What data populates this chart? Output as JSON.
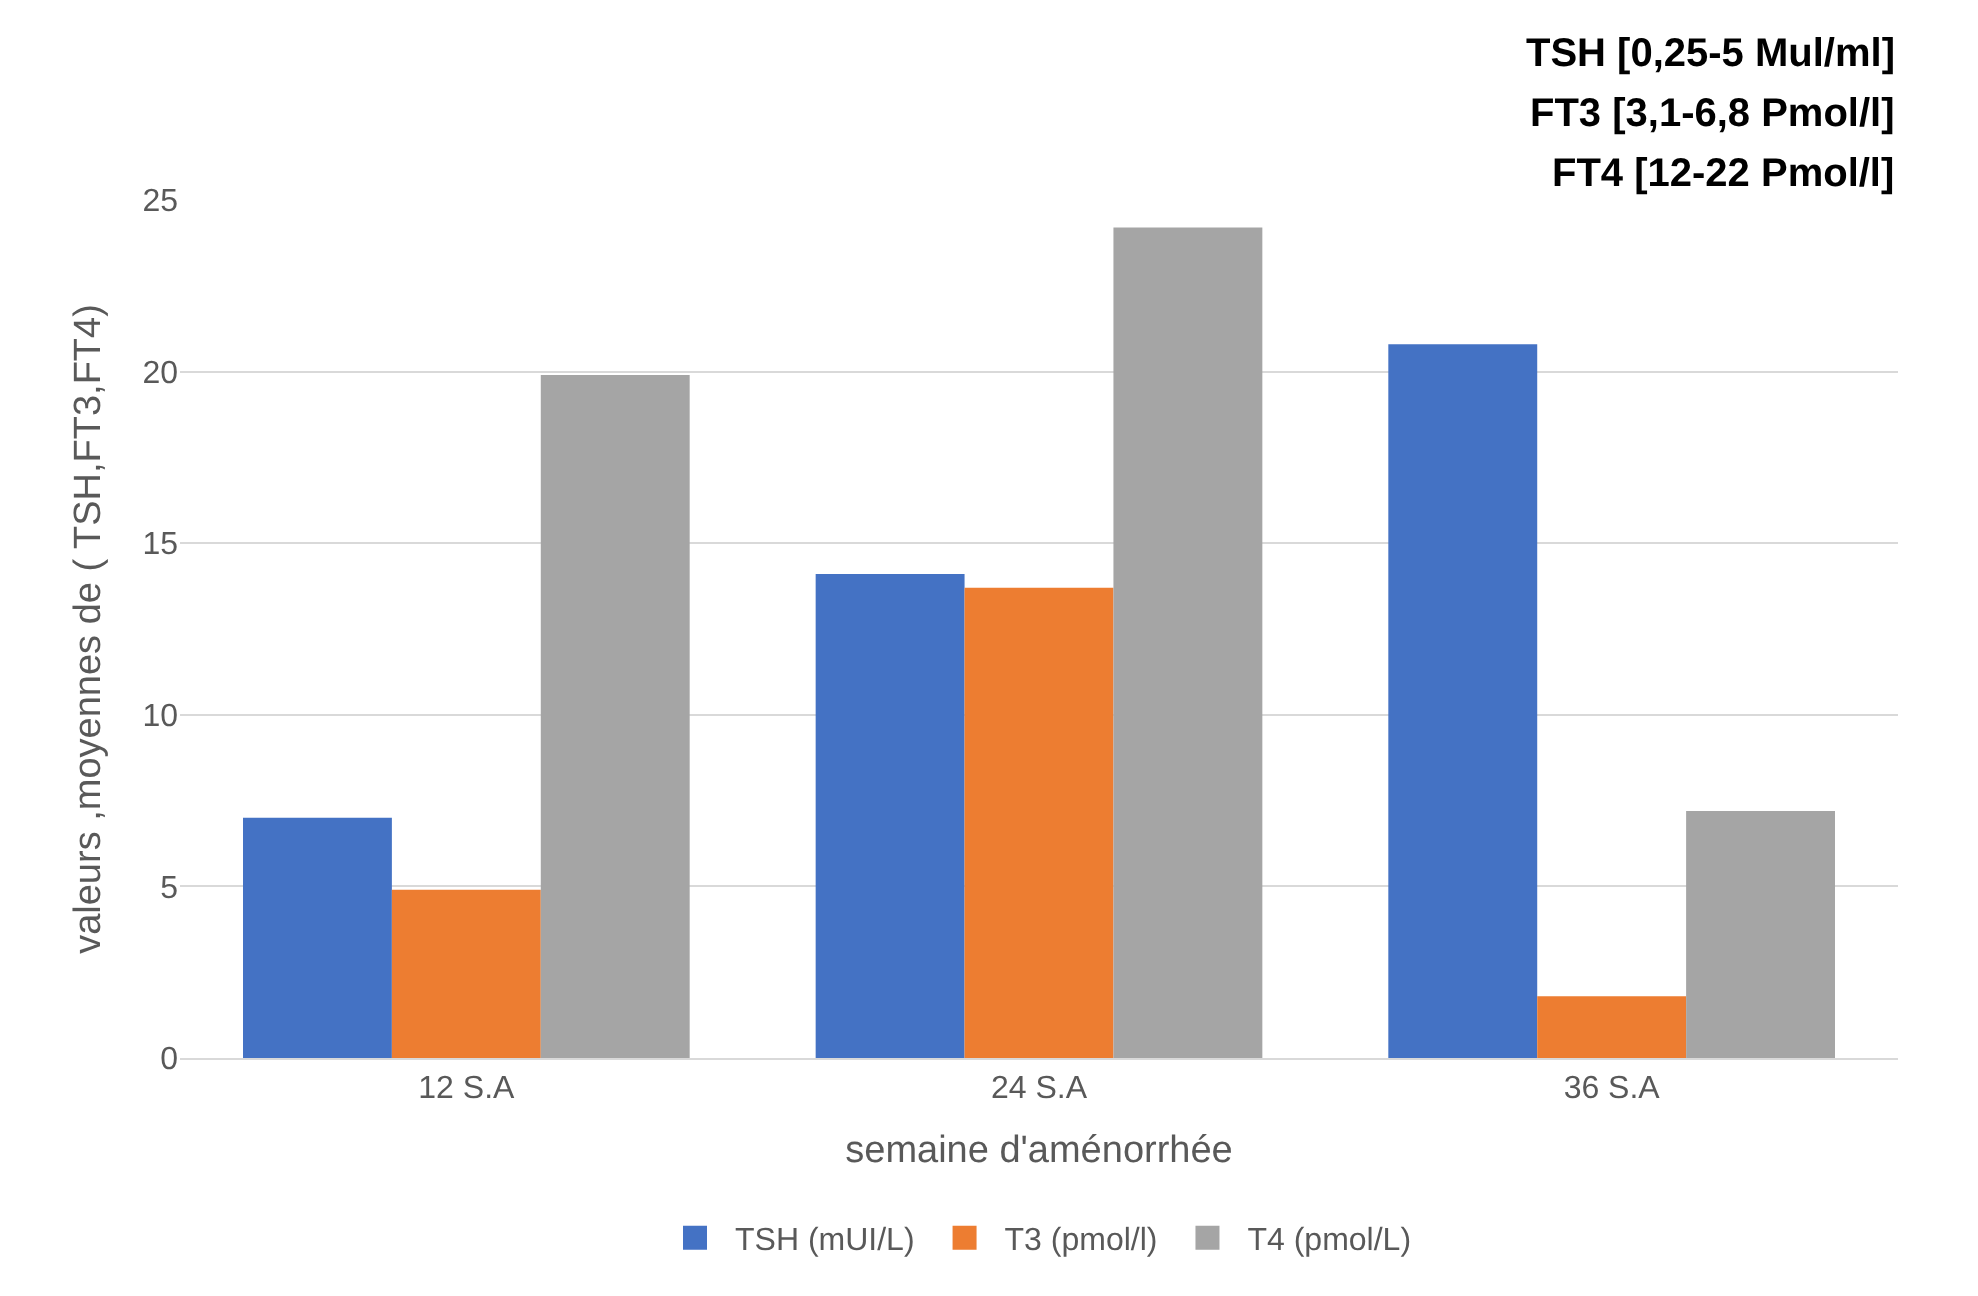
{
  "chart_data": {
    "type": "bar",
    "xlabel": "semaine d'aménorrhée",
    "ylabel": "valeurs ,moyennes de ( TSH,FT3,FT4)",
    "categories": [
      "12 S.A",
      "24 S.A",
      "36 S.A"
    ],
    "series": [
      {
        "name": "TSH (mUI/L)",
        "color": "#4472c4",
        "values": [
          7.0,
          14.1,
          20.8
        ]
      },
      {
        "name": "T3 (pmol/l)",
        "color": "#ed7d31",
        "values": [
          4.9,
          13.7,
          1.8
        ]
      },
      {
        "name": "T4 (pmol/L)",
        "color": "#a5a5a5",
        "values": [
          19.9,
          24.2,
          7.2
        ]
      }
    ],
    "ylim": [
      0,
      25
    ],
    "yticks": [
      0,
      5,
      10,
      15,
      20,
      25
    ],
    "grid": "y",
    "legend": "bottom",
    "annotations": [
      "TSH [0,25-5 Mul/ml]",
      "FT3 [3,1-6,8 Pmol/l]",
      "FT4 [12-22 Pmol/l]"
    ]
  }
}
